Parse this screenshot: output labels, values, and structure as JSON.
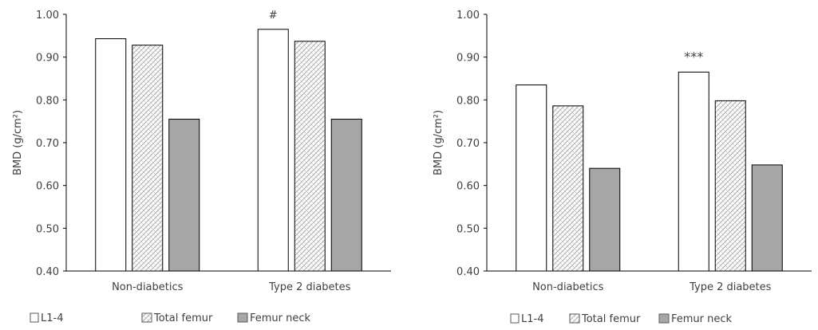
{
  "chart_data": [
    {
      "type": "bar",
      "title": "",
      "xlabel": "",
      "ylabel": "BMD (g/cm²)",
      "ylim": [
        0.4,
        1.0
      ],
      "yticks": [
        "0.40",
        "0.50",
        "0.60",
        "0.70",
        "0.80",
        "0.90",
        "1.00"
      ],
      "grid": false,
      "legend_position": "bottom",
      "categories": [
        "Non-diabetics",
        "Type 2 diabetes"
      ],
      "series": [
        {
          "name": "L1-4",
          "values": [
            0.943,
            0.965
          ],
          "fill": "#ffffff",
          "pattern": "none"
        },
        {
          "name": "Total femur",
          "values": [
            0.928,
            0.937
          ],
          "fill": "#ffffff",
          "pattern": "crosshatch"
        },
        {
          "name": "Femur neck",
          "values": [
            0.755,
            0.755
          ],
          "fill": "#a6a6a6",
          "pattern": "none"
        }
      ],
      "annotations": [
        {
          "text": "#",
          "category": "Type 2 diabetes",
          "series": "L1-4"
        }
      ]
    },
    {
      "type": "bar",
      "title": "",
      "xlabel": "",
      "ylabel": "BMD (g/cm²)",
      "ylim": [
        0.4,
        1.0
      ],
      "yticks": [
        "0.40",
        "0.50",
        "0.60",
        "0.70",
        "0.80",
        "0.90",
        "1.00"
      ],
      "grid": false,
      "legend_position": "bottom",
      "categories": [
        "Non-diabetics",
        "Type 2 diabetes"
      ],
      "series": [
        {
          "name": "L1-4",
          "values": [
            0.835,
            0.865
          ],
          "fill": "#ffffff",
          "pattern": "none"
        },
        {
          "name": "Total femur",
          "values": [
            0.786,
            0.798
          ],
          "fill": "#ffffff",
          "pattern": "crosshatch"
        },
        {
          "name": "Femur neck",
          "values": [
            0.64,
            0.648
          ],
          "fill": "#a6a6a6",
          "pattern": "none"
        }
      ],
      "annotations": [
        {
          "text": "***",
          "category": "Type 2 diabetes",
          "series": "L1-4"
        }
      ]
    }
  ]
}
